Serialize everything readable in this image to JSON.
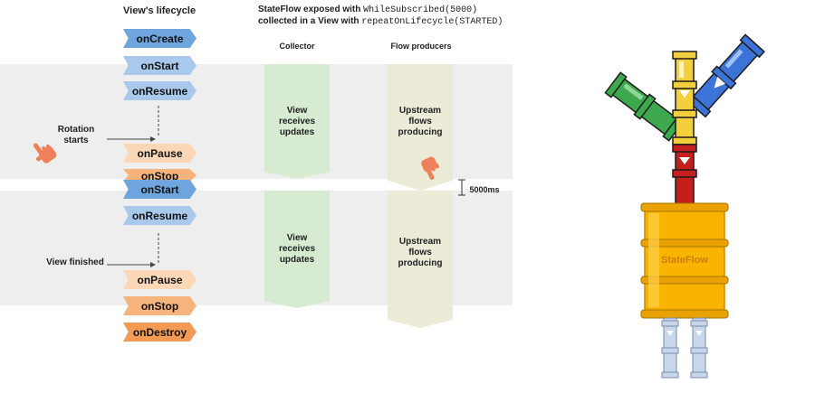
{
  "lifecycle_title": "View's lifecycle",
  "header_line1_prefix": "StateFlow exposed with ",
  "header_line1_code": "WhileSubscribed(5000)",
  "header_line2_prefix": "collected in a View with ",
  "header_line2_code": "repeatOnLifecycle(STARTED)",
  "collector_title": "Collector",
  "producers_title": "Flow producers",
  "steps": {
    "on_create": "onCreate",
    "on_start_1": "onStart",
    "on_resume_1": "onResume",
    "on_pause_1": "onPause",
    "on_stop_1": "onStop",
    "on_start_2": "onStart",
    "on_resume_2": "onResume",
    "on_pause_2": "onPause",
    "on_stop_2": "onStop",
    "on_destroy": "onDestroy"
  },
  "rotation_label": "Rotation\nstarts",
  "view_finished_label": "View finished",
  "collector_text": "View\nreceives\nupdates",
  "producer_text": "Upstream\nflows\nproducing",
  "timeout_label": "5000ms",
  "barrel_label": "StateFlow",
  "colors": {
    "band": "#eeeeee",
    "lifecycle_blue_dark": "#6ea5de",
    "lifecycle_blue": "#a9c9ec",
    "lifecycle_orange_light": "#fbd7b6",
    "lifecycle_orange": "#f6b47c",
    "lifecycle_orange_dark": "#f19b55",
    "collector": "#d7ebd0",
    "producer": "#ebebd8",
    "hand": "#f0805a",
    "barrel": "#f9b400",
    "pipe_green": "#3ea84e",
    "pipe_blue": "#3b73d6",
    "pipe_yellow": "#f3cf3d",
    "pipe_red": "#c61d1d",
    "pipe_outlet": "#c7d6ea"
  },
  "icons": [
    "hand-pointing-icon",
    "hand-pointing-down-icon",
    "stateflow-pipes-illustration"
  ]
}
